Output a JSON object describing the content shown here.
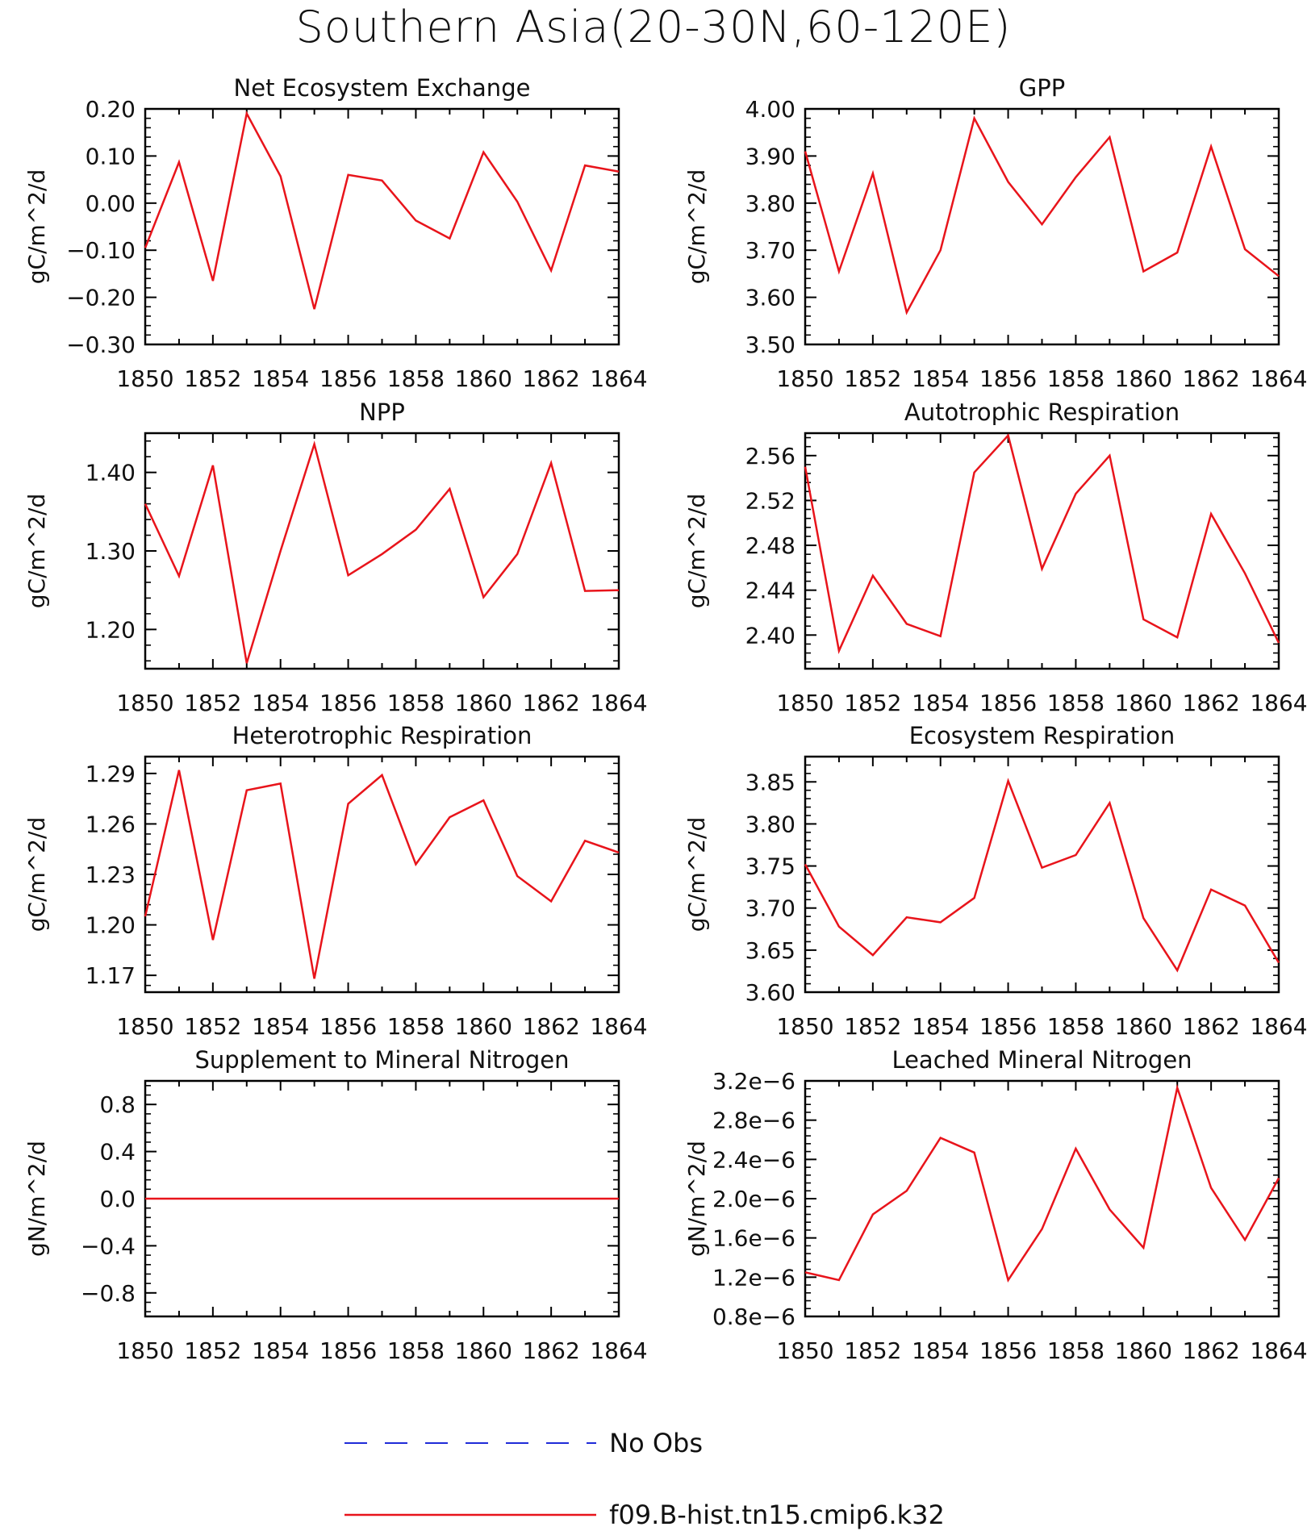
{
  "title": "Southern Asia(20-30N,60-120E)",
  "xticks": [
    "1850",
    "1852",
    "1854",
    "1856",
    "1858",
    "1860",
    "1862",
    "1864"
  ],
  "legend": {
    "items": [
      {
        "label": "No Obs",
        "color": "#1f2bd8",
        "dash": true
      },
      {
        "label": "f09.B-hist.tn15.cmip6.k32",
        "color": "#e8141b",
        "dash": false
      }
    ]
  },
  "chart_data": [
    {
      "type": "line",
      "title": "Net Ecosystem Exchange",
      "ylabel": "gC/m^2/d",
      "x": [
        1850,
        1851,
        1852,
        1853,
        1854,
        1855,
        1856,
        1857,
        1858,
        1859,
        1860,
        1861,
        1862,
        1863,
        1864
      ],
      "series": [
        {
          "name": "f09.B-hist.tn15.cmip6.k32",
          "color": "#e8141b",
          "values": [
            -0.095,
            0.087,
            -0.165,
            0.19,
            0.057,
            -0.225,
            0.06,
            0.048,
            -0.037,
            -0.075,
            0.108,
            0.003,
            -0.143,
            0.08,
            0.067
          ]
        }
      ],
      "xlim": [
        1850,
        1864
      ],
      "ylim": [
        -0.3,
        0.2
      ],
      "yticks": [
        -0.3,
        -0.2,
        -0.1,
        0.0,
        0.1,
        0.2
      ],
      "yticklabels": [
        "−0.30",
        "−0.20",
        "−0.10",
        "0.00",
        "0.10",
        "0.20"
      ]
    },
    {
      "type": "line",
      "title": "GPP",
      "ylabel": "gC/m^2/d",
      "x": [
        1850,
        1851,
        1852,
        1853,
        1854,
        1855,
        1856,
        1857,
        1858,
        1859,
        1860,
        1861,
        1862,
        1863,
        1864
      ],
      "series": [
        {
          "name": "f09.B-hist.tn15.cmip6.k32",
          "color": "#e8141b",
          "values": [
            3.91,
            3.655,
            3.863,
            3.568,
            3.7,
            3.98,
            3.845,
            3.755,
            3.855,
            3.94,
            3.655,
            3.695,
            3.92,
            3.702,
            3.645
          ]
        }
      ],
      "xlim": [
        1850,
        1864
      ],
      "ylim": [
        3.5,
        4.0
      ],
      "yticks": [
        3.5,
        3.6,
        3.7,
        3.8,
        3.9,
        4.0
      ],
      "yticklabels": [
        "3.50",
        "3.60",
        "3.70",
        "3.80",
        "3.90",
        "4.00"
      ]
    },
    {
      "type": "line",
      "title": "NPP",
      "ylabel": "gC/m^2/d",
      "x": [
        1850,
        1851,
        1852,
        1853,
        1854,
        1855,
        1856,
        1857,
        1858,
        1859,
        1860,
        1861,
        1862,
        1863,
        1864
      ],
      "series": [
        {
          "name": "f09.B-hist.tn15.cmip6.k32",
          "color": "#e8141b",
          "values": [
            1.36,
            1.268,
            1.409,
            1.157,
            1.3,
            1.436,
            1.269,
            1.296,
            1.327,
            1.379,
            1.241,
            1.296,
            1.412,
            1.249,
            1.25
          ]
        }
      ],
      "xlim": [
        1850,
        1864
      ],
      "ylim": [
        1.15,
        1.45
      ],
      "yticks": [
        1.2,
        1.3,
        1.4
      ],
      "yticklabels": [
        "1.20",
        "1.30",
        "1.40"
      ]
    },
    {
      "type": "line",
      "title": "Autotrophic Respiration",
      "ylabel": "gC/m^2/d",
      "x": [
        1850,
        1851,
        1852,
        1853,
        1854,
        1855,
        1856,
        1857,
        1858,
        1859,
        1860,
        1861,
        1862,
        1863,
        1864
      ],
      "series": [
        {
          "name": "f09.B-hist.tn15.cmip6.k32",
          "color": "#e8141b",
          "values": [
            2.55,
            2.386,
            2.453,
            2.41,
            2.399,
            2.545,
            2.578,
            2.459,
            2.526,
            2.56,
            2.414,
            2.398,
            2.508,
            2.455,
            2.393
          ]
        }
      ],
      "xlim": [
        1850,
        1864
      ],
      "ylim": [
        2.37,
        2.58
      ],
      "yticks": [
        2.4,
        2.44,
        2.48,
        2.52,
        2.56
      ],
      "yticklabels": [
        "2.40",
        "2.44",
        "2.48",
        "2.52",
        "2.56"
      ]
    },
    {
      "type": "line",
      "title": "Heterotrophic Respiration",
      "ylabel": "gC/m^2/d",
      "x": [
        1850,
        1851,
        1852,
        1853,
        1854,
        1855,
        1856,
        1857,
        1858,
        1859,
        1860,
        1861,
        1862,
        1863,
        1864
      ],
      "series": [
        {
          "name": "f09.B-hist.tn15.cmip6.k32",
          "color": "#e8141b",
          "values": [
            1.205,
            1.292,
            1.191,
            1.28,
            1.284,
            1.168,
            1.272,
            1.289,
            1.236,
            1.264,
            1.274,
            1.229,
            1.214,
            1.25,
            1.243
          ]
        }
      ],
      "xlim": [
        1850,
        1864
      ],
      "ylim": [
        1.16,
        1.3
      ],
      "yticks": [
        1.17,
        1.2,
        1.23,
        1.26,
        1.29
      ],
      "yticklabels": [
        "1.17",
        "1.20",
        "1.23",
        "1.26",
        "1.29"
      ]
    },
    {
      "type": "line",
      "title": "Ecosystem Respiration",
      "ylabel": "gC/m^2/d",
      "x": [
        1850,
        1851,
        1852,
        1853,
        1854,
        1855,
        1856,
        1857,
        1858,
        1859,
        1860,
        1861,
        1862,
        1863,
        1864
      ],
      "series": [
        {
          "name": "f09.B-hist.tn15.cmip6.k32",
          "color": "#e8141b",
          "values": [
            3.752,
            3.678,
            3.644,
            3.689,
            3.683,
            3.712,
            3.851,
            3.748,
            3.763,
            3.825,
            3.688,
            3.626,
            3.722,
            3.703,
            3.635
          ]
        }
      ],
      "xlim": [
        1850,
        1864
      ],
      "ylim": [
        3.6,
        3.88
      ],
      "yticks": [
        3.6,
        3.65,
        3.7,
        3.75,
        3.8,
        3.85
      ],
      "yticklabels": [
        "3.60",
        "3.65",
        "3.70",
        "3.75",
        "3.80",
        "3.85"
      ]
    },
    {
      "type": "line",
      "title": "Supplement to Mineral Nitrogen",
      "ylabel": "gN/m^2/d",
      "x": [
        1850,
        1851,
        1852,
        1853,
        1854,
        1855,
        1856,
        1857,
        1858,
        1859,
        1860,
        1861,
        1862,
        1863,
        1864
      ],
      "series": [
        {
          "name": "f09.B-hist.tn15.cmip6.k32",
          "color": "#e8141b",
          "values": [
            0,
            0,
            0,
            0,
            0,
            0,
            0,
            0,
            0,
            0,
            0,
            0,
            0,
            0,
            0
          ]
        }
      ],
      "xlim": [
        1850,
        1864
      ],
      "ylim": [
        -1.0,
        1.0
      ],
      "yticks": [
        -0.8,
        -0.4,
        0.0,
        0.4,
        0.8
      ],
      "yticklabels": [
        "−0.8",
        "−0.4",
        "0.0",
        "0.4",
        "0.8"
      ]
    },
    {
      "type": "line",
      "title": "Leached Mineral Nitrogen",
      "ylabel": "gN/m^2/d",
      "x": [
        1850,
        1851,
        1852,
        1853,
        1854,
        1855,
        1856,
        1857,
        1858,
        1859,
        1860,
        1861,
        1862,
        1863,
        1864
      ],
      "series": [
        {
          "name": "f09.B-hist.tn15.cmip6.k32",
          "color": "#e8141b",
          "values": [
            1.25e-06,
            1.17e-06,
            1.84e-06,
            2.08e-06,
            2.62e-06,
            2.47e-06,
            1.17e-06,
            1.69e-06,
            2.51e-06,
            1.89e-06,
            1.5e-06,
            3.13e-06,
            2.11e-06,
            1.58e-06,
            2.21e-06
          ]
        }
      ],
      "xlim": [
        1850,
        1864
      ],
      "ylim": [
        8e-07,
        3.2e-06
      ],
      "yticks": [
        8e-07,
        1.2e-06,
        1.6e-06,
        2e-06,
        2.4e-06,
        2.8e-06,
        3.2e-06
      ],
      "yticklabels": [
        "0.8e−6",
        "1.2e−6",
        "1.6e−6",
        "2.0e−6",
        "2.4e−6",
        "2.8e−6",
        "3.2e−6"
      ]
    }
  ]
}
